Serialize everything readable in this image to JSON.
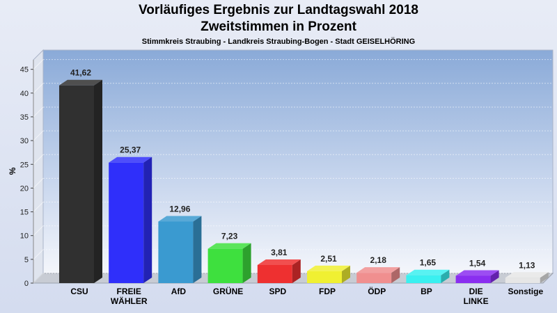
{
  "chart_data": {
    "type": "bar",
    "title": "Vorläufiges Ergebnis zur Landtagswahl 2018",
    "subtitle": "Zweitstimmen in Prozent",
    "subtitle2": "Stimmkreis Straubing - Landkreis Straubing-Bogen - Stadt GEISELHÖRING",
    "ylabel": "%",
    "ylim": [
      0,
      47
    ],
    "yticks": [
      "0",
      "5",
      "10",
      "15",
      "20",
      "25",
      "30",
      "35",
      "40",
      "45"
    ],
    "grid": true,
    "categories": [
      [
        "CSU"
      ],
      [
        "FREIE",
        "WÄHLER"
      ],
      [
        "AfD"
      ],
      [
        "GRÜNE"
      ],
      [
        "SPD"
      ],
      [
        "FDP"
      ],
      [
        "ÖDP"
      ],
      [
        "BP"
      ],
      [
        "DIE",
        "LINKE"
      ],
      [
        "Sonstige"
      ]
    ],
    "values": [
      41.62,
      25.37,
      12.96,
      7.23,
      3.81,
      2.51,
      2.18,
      1.65,
      1.54,
      1.13
    ],
    "value_labels": [
      "41,62",
      "25,37",
      "12,96",
      "7,23",
      "3,81",
      "2,51",
      "2,18",
      "1,65",
      "1,54",
      "1,13"
    ],
    "colors": [
      "#303030",
      "#2f2ffa",
      "#3a9ad0",
      "#3ee03e",
      "#ee3030",
      "#f0f032",
      "#f08f8f",
      "#3af0f0",
      "#8a2ef0",
      "#e6e6e6"
    ]
  }
}
